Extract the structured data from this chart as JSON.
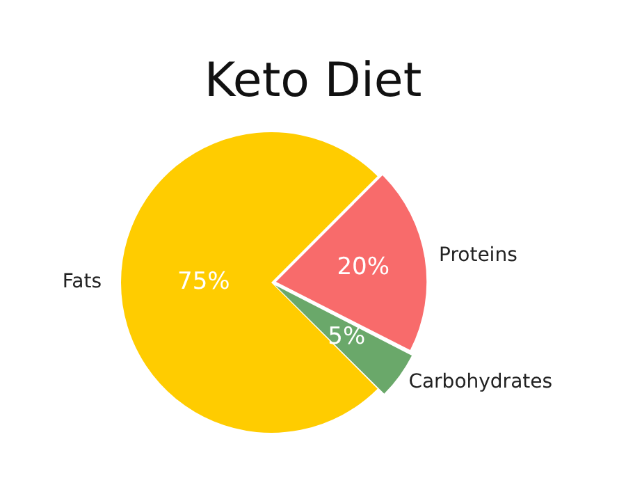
{
  "chart_data": {
    "type": "pie",
    "title": "Keto Diet",
    "categories": [
      "Fats",
      "Proteins",
      "Carbohydrates"
    ],
    "values": [
      75,
      20,
      5
    ],
    "colors": [
      "#ffcc00",
      "#f86b6b",
      "#6aa86a"
    ],
    "value_labels": [
      "75%",
      "20%",
      "5%"
    ],
    "legend": false
  }
}
